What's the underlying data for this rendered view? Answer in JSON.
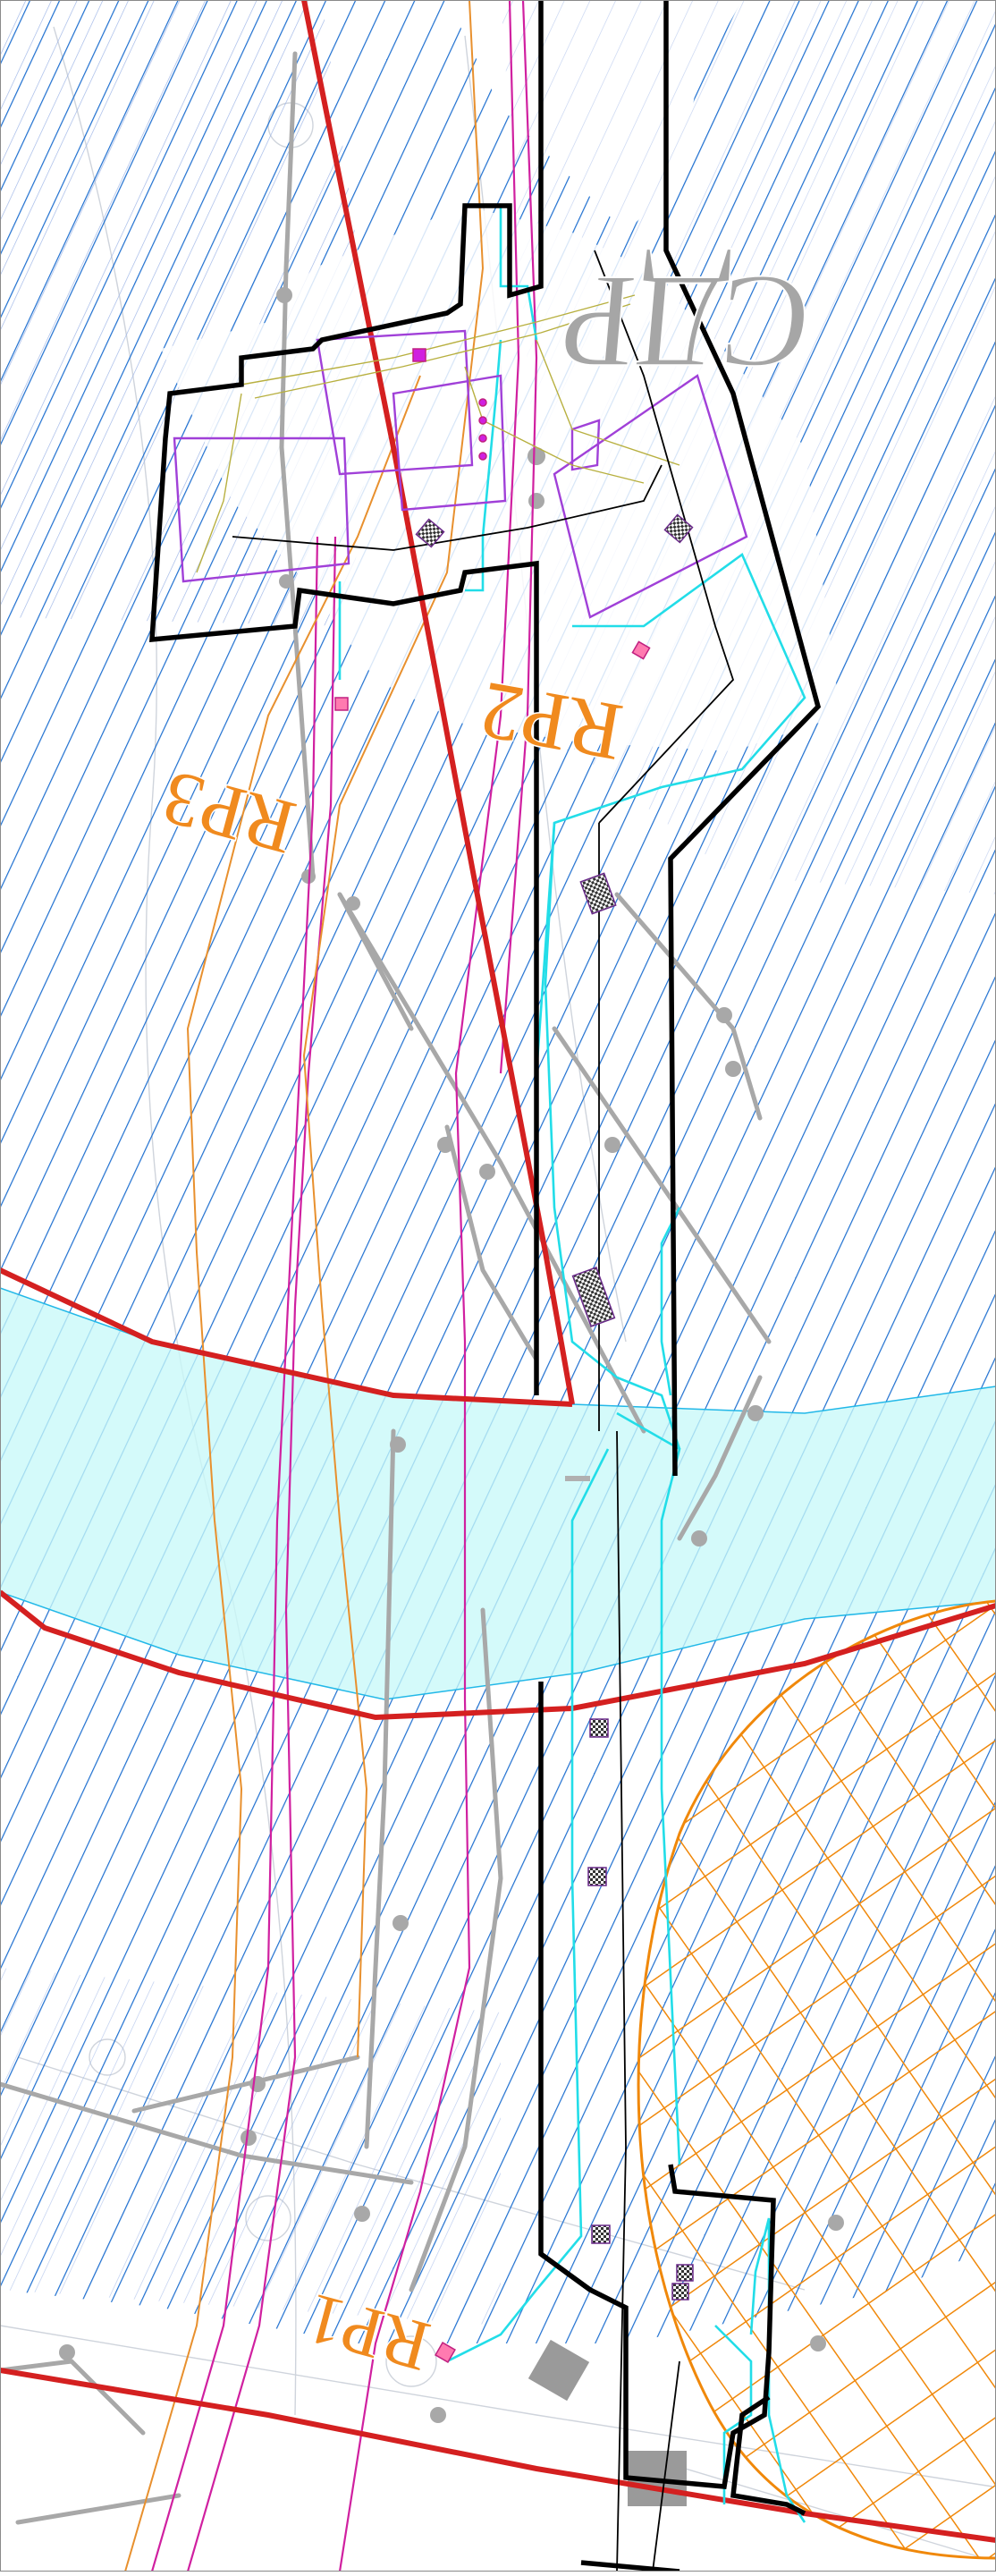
{
  "map": {
    "labels": {
      "sdp": "СДР",
      "rp1": "RP1",
      "rp2": "RP2",
      "rp3": "RP3"
    },
    "colors": {
      "background": "#ffffff",
      "blue_hatch": "#1e6fd0",
      "light_blue_hatch": "#9cb4e6",
      "cyan_band_fill": "#c8f8f8",
      "red_line": "#d42020",
      "black_outline": "#000000",
      "cyan_line": "#22dde8",
      "magenta_line": "#d020a0",
      "purple_line": "#a040d8",
      "orange_grid": "#f0880a",
      "orange_label": "#f08a1e",
      "gray_road": "#aaaaaa",
      "sdp_label": "#a6a6a6"
    },
    "icons": [
      "hatched-square-marker",
      "pink-square-marker",
      "gray-building-block"
    ]
  }
}
